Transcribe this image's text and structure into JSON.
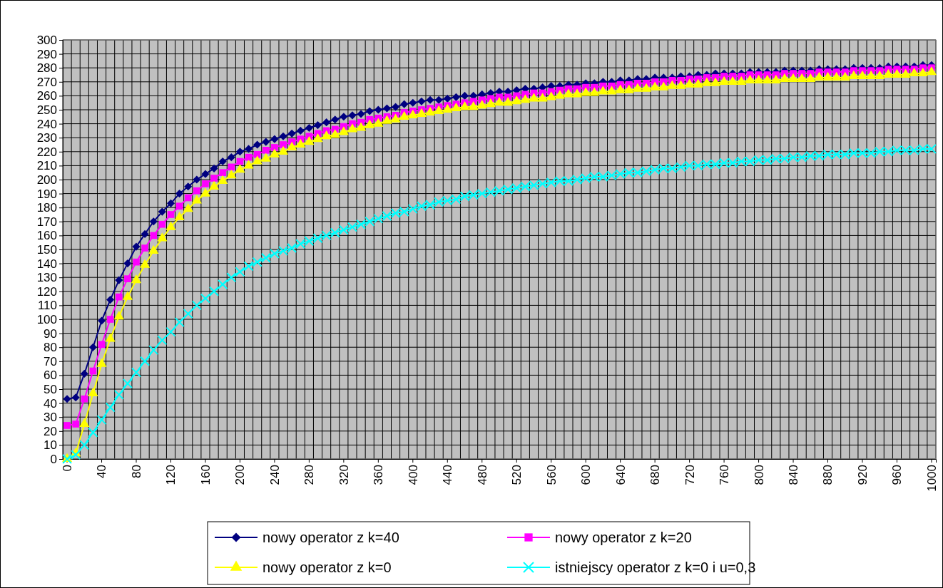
{
  "chart_data": {
    "type": "line",
    "categories": [
      "0",
      null,
      null,
      null,
      "40",
      null,
      null,
      null,
      "80",
      null,
      null,
      null,
      "120",
      null,
      null,
      null,
      "160",
      null,
      null,
      null,
      "200",
      null,
      null,
      null,
      "240",
      null,
      null,
      null,
      "280",
      null,
      null,
      null,
      "320",
      null,
      null,
      null,
      "360",
      null,
      null,
      null,
      "400",
      null,
      null,
      null,
      "440",
      null,
      null,
      null,
      "480",
      null,
      null,
      null,
      "520",
      null,
      null,
      null,
      "560",
      null,
      null,
      null,
      "600",
      null,
      null,
      null,
      "640",
      null,
      null,
      null,
      "680",
      null,
      null,
      null,
      "720",
      null,
      null,
      null,
      "760",
      null,
      null,
      null,
      "800",
      null,
      null,
      null,
      "840",
      null,
      null,
      null,
      "880",
      null,
      null,
      null,
      "920",
      null,
      null,
      null,
      "960",
      null,
      null,
      null,
      "1000"
    ],
    "ylim": [
      0,
      300
    ],
    "yticks": [
      0,
      10,
      20,
      30,
      40,
      50,
      60,
      70,
      80,
      90,
      100,
      110,
      120,
      130,
      140,
      150,
      160,
      170,
      180,
      190,
      200,
      210,
      220,
      230,
      240,
      250,
      260,
      270,
      280,
      290,
      300
    ],
    "grid": true,
    "legend": "bottom",
    "series": [
      {
        "name": "nowy operator z k=40",
        "color": "#000080",
        "marker": "diamond",
        "values": [
          43,
          44,
          61,
          80,
          99,
          114,
          128,
          140,
          152,
          161,
          170,
          177,
          183,
          190,
          195,
          200,
          204,
          208,
          213,
          216,
          220,
          222,
          225,
          227,
          229,
          231,
          233,
          235,
          237,
          239,
          241,
          243,
          245,
          246,
          247,
          249,
          250,
          251,
          252,
          254,
          255,
          256,
          257,
          257,
          258,
          259,
          260,
          260,
          261,
          262,
          263,
          263,
          264,
          265,
          265,
          266,
          267,
          267,
          268,
          268,
          269,
          269,
          270,
          270,
          271,
          271,
          272,
          272,
          273,
          273,
          273,
          274,
          274,
          275,
          275,
          276,
          276,
          276,
          276,
          277,
          277,
          277,
          277,
          278,
          278,
          278,
          278,
          279,
          279,
          279,
          279,
          280,
          280,
          280,
          280,
          281,
          281,
          281,
          281,
          282,
          282
        ]
      },
      {
        "name": "nowy operator z k=20",
        "color": "#ff00ff",
        "marker": "square",
        "values": [
          24,
          25,
          43,
          63,
          82,
          100,
          116,
          129,
          141,
          151,
          160,
          168,
          175,
          181,
          187,
          192,
          197,
          201,
          205,
          209,
          213,
          216,
          218,
          221,
          223,
          225,
          227,
          229,
          231,
          233,
          235,
          236,
          238,
          240,
          241,
          243,
          244,
          245,
          246,
          248,
          249,
          250,
          251,
          252,
          253,
          254,
          255,
          256,
          257,
          258,
          259,
          259,
          260,
          261,
          262,
          262,
          263,
          264,
          265,
          265,
          266,
          266,
          267,
          267,
          268,
          268,
          269,
          269,
          270,
          270,
          271,
          271,
          272,
          272,
          273,
          273,
          274,
          274,
          274,
          275,
          275,
          275,
          275,
          276,
          276,
          276,
          276,
          277,
          277,
          277,
          277,
          278,
          278,
          278,
          278,
          279,
          279,
          279,
          279,
          280,
          280
        ]
      },
      {
        "name": "nowy operator z k=0",
        "color": "#ffff00",
        "marker": "triangle",
        "values": [
          0,
          4,
          25,
          47,
          68,
          86,
          102,
          116,
          128,
          139,
          149,
          158,
          166,
          173,
          179,
          185,
          190,
          195,
          199,
          203,
          207,
          210,
          213,
          215,
          218,
          220,
          223,
          225,
          227,
          229,
          231,
          232,
          234,
          236,
          237,
          239,
          240,
          242,
          243,
          245,
          246,
          247,
          248,
          249,
          250,
          251,
          252,
          252,
          253,
          254,
          255,
          255,
          256,
          257,
          258,
          258,
          259,
          260,
          261,
          261,
          262,
          262,
          263,
          263,
          264,
          264,
          265,
          265,
          266,
          266,
          267,
          267,
          268,
          268,
          269,
          269,
          270,
          270,
          270,
          271,
          271,
          271,
          271,
          272,
          272,
          272,
          272,
          273,
          273,
          273,
          273,
          274,
          274,
          274,
          274,
          275,
          275,
          275,
          276,
          276,
          277
        ]
      },
      {
        "name": "istniejscy operator z k=0 i u=0,3",
        "color": "#00ffff",
        "marker": "cross",
        "values": [
          0,
          3,
          10,
          19,
          28,
          37,
          46,
          54,
          62,
          70,
          78,
          85,
          91,
          98,
          104,
          110,
          115,
          120,
          125,
          130,
          134,
          138,
          141,
          144,
          147,
          149,
          151,
          154,
          156,
          158,
          160,
          162,
          164,
          166,
          168,
          170,
          172,
          174,
          176,
          177,
          179,
          181,
          182,
          184,
          185,
          186,
          188,
          189,
          190,
          191,
          192,
          193,
          194,
          195,
          196,
          197,
          198,
          199,
          199,
          200,
          201,
          202,
          202,
          203,
          204,
          205,
          205,
          206,
          207,
          208,
          208,
          209,
          210,
          210,
          211,
          211,
          212,
          212,
          213,
          213,
          214,
          214,
          215,
          215,
          216,
          216,
          217,
          217,
          218,
          218,
          218,
          219,
          219,
          219,
          220,
          220,
          221,
          221,
          221,
          222,
          222
        ]
      }
    ]
  }
}
